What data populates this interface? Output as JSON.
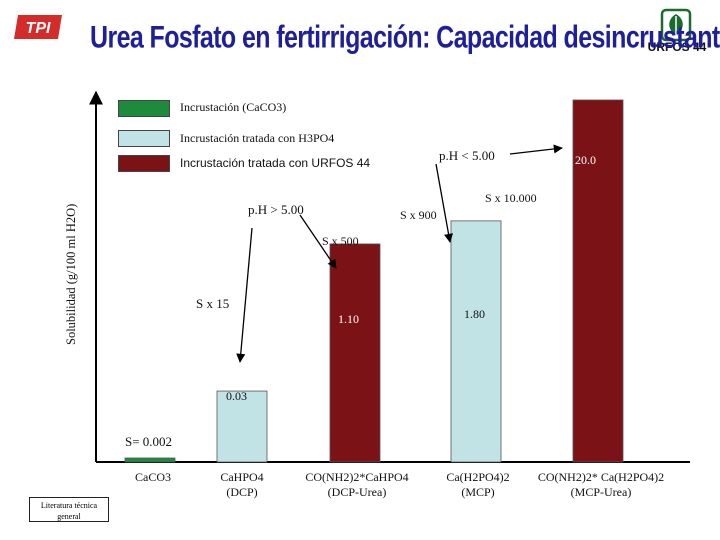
{
  "title": "Urea Fosfato en fertirrigación: Capacidad desincrustante",
  "logos": {
    "left_text": "TPI",
    "right_text": "URFOS 44"
  },
  "legend": {
    "items": [
      {
        "label": "Incrustación (CaCO3)",
        "color": "#1e8a3c"
      },
      {
        "label": "Incrustación tratada con H3PO4",
        "color": "#c2e3e6"
      },
      {
        "label": "Incrustación tratada con URFOS 44",
        "color": "#7a1216"
      }
    ]
  },
  "chart_data": {
    "type": "bar",
    "ylabel": "Solubilidad (g/100 ml H2O)",
    "categories": [
      "CaCO3",
      "CaHPO4 (DCP)",
      "CO(NH2)2*CaHPO4 (DCP-Urea)",
      "Ca(H2PO4)2 (MCP)",
      "CO(NH2)2* Ca(H2PO4)2 (MCP-Urea)"
    ],
    "values": [
      0.002,
      0.03,
      1.1,
      1.8,
      20.0
    ],
    "value_labels": [
      "S= 0.002",
      "0.03",
      "1.10",
      "1.80",
      "20.0"
    ],
    "series_colors": [
      "#1e8a3c",
      "#c2e3e6",
      "#7a1216",
      "#c2e3e6",
      "#7a1216"
    ],
    "scale": "non-linear (log-like)",
    "grid": false,
    "legend_position": "top-left",
    "annotations": [
      "p.H > 5.00",
      "p.H < 5.00",
      "S x 15",
      "S x 500",
      "S x 900",
      "S x 10.000"
    ]
  },
  "footer_note": "Literatura técnica general"
}
